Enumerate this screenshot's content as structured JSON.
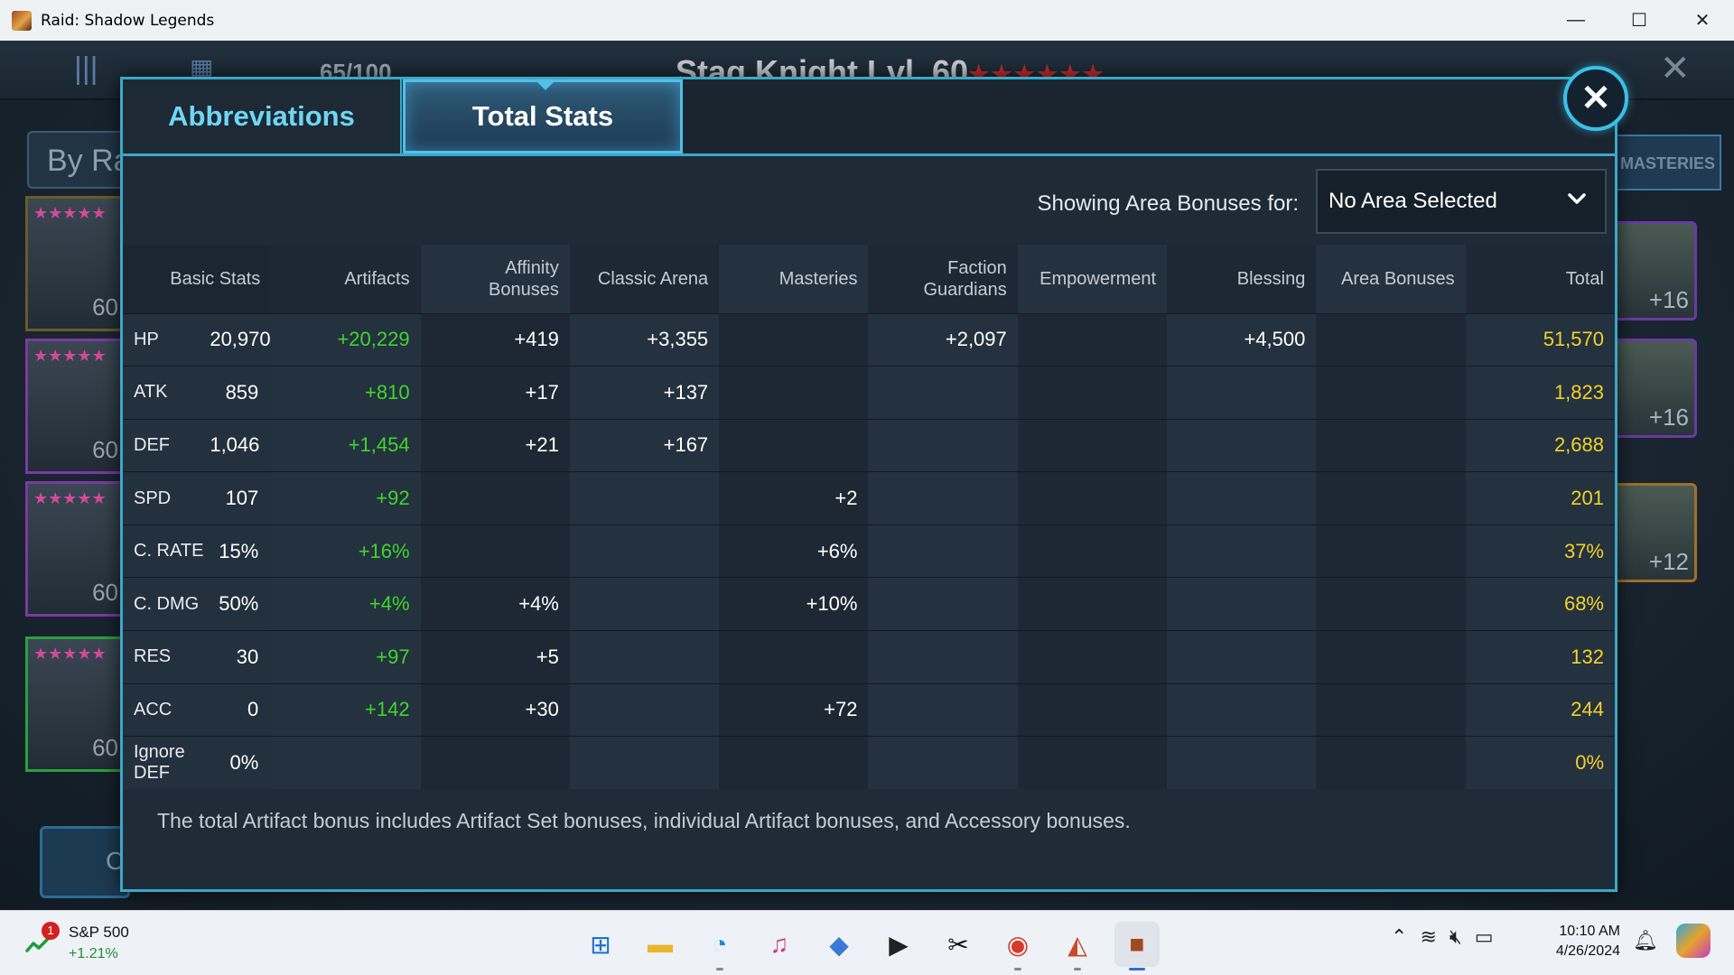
{
  "window": {
    "title": "Raid: Shadow Legends",
    "minimize": "—",
    "maximize": "☐",
    "close": "✕"
  },
  "game_bg": {
    "hero_title": "Stag Knight Lvl. 60",
    "stars": "★★★★★★",
    "champion_count": "65/100",
    "sort_label": "By Ra",
    "masteries_label": "MASTERIES",
    "card_levels": [
      "60",
      "60",
      "60",
      "60"
    ],
    "gear_levels": [
      "+16",
      "+16",
      "+12"
    ],
    "bottom_button_letter": "C"
  },
  "dialog": {
    "tabs": [
      "Abbreviations",
      "Total Stats"
    ],
    "active_tab": "Total Stats",
    "close_symbol": "✕",
    "area_label": "Showing Area Bonuses for:",
    "area_value": "No Area Selected",
    "chevron": "⌄",
    "columns": [
      "Basic Stats",
      "Artifacts",
      "Affinity Bonuses",
      "Classic Arena",
      "Masteries",
      "Faction Guardians",
      "Empowerment",
      "Blessing",
      "Area Bonuses",
      "Total"
    ],
    "rows": [
      {
        "stat": "HP",
        "basic": "20,970",
        "artifacts": "+20,229",
        "affinity": "+419",
        "arena": "+3,355",
        "masteries": "",
        "faction": "+2,097",
        "empowerment": "",
        "blessing": "+4,500",
        "area": "",
        "total": "51,570"
      },
      {
        "stat": "ATK",
        "basic": "859",
        "artifacts": "+810",
        "affinity": "+17",
        "arena": "+137",
        "masteries": "",
        "faction": "",
        "empowerment": "",
        "blessing": "",
        "area": "",
        "total": "1,823"
      },
      {
        "stat": "DEF",
        "basic": "1,046",
        "artifacts": "+1,454",
        "affinity": "+21",
        "arena": "+167",
        "masteries": "",
        "faction": "",
        "empowerment": "",
        "blessing": "",
        "area": "",
        "total": "2,688"
      },
      {
        "stat": "SPD",
        "basic": "107",
        "artifacts": "+92",
        "affinity": "",
        "arena": "",
        "masteries": "+2",
        "faction": "",
        "empowerment": "",
        "blessing": "",
        "area": "",
        "total": "201"
      },
      {
        "stat": "C. RATE",
        "basic": "15%",
        "artifacts": "+16%",
        "affinity": "",
        "arena": "",
        "masteries": "+6%",
        "faction": "",
        "empowerment": "",
        "blessing": "",
        "area": "",
        "total": "37%"
      },
      {
        "stat": "C. DMG",
        "basic": "50%",
        "artifacts": "+4%",
        "affinity": "+4%",
        "arena": "",
        "masteries": "+10%",
        "faction": "",
        "empowerment": "",
        "blessing": "",
        "area": "",
        "total": "68%"
      },
      {
        "stat": "RES",
        "basic": "30",
        "artifacts": "+97",
        "affinity": "+5",
        "arena": "",
        "masteries": "",
        "faction": "",
        "empowerment": "",
        "blessing": "",
        "area": "",
        "total": "132"
      },
      {
        "stat": "ACC",
        "basic": "0",
        "artifacts": "+142",
        "affinity": "+30",
        "arena": "",
        "masteries": "+72",
        "faction": "",
        "empowerment": "",
        "blessing": "",
        "area": "",
        "total": "244"
      },
      {
        "stat": "Ignore DEF",
        "basic": "0%",
        "artifacts": "",
        "affinity": "",
        "arena": "",
        "masteries": "",
        "faction": "",
        "empowerment": "",
        "blessing": "",
        "area": "",
        "total": "0%"
      }
    ],
    "footnote": "The total Artifact bonus includes Artifact Set bonuses, individual Artifact bonuses, and Accessory bonuses."
  },
  "colors": {
    "accent": "#3aa8c8",
    "artifact_green": "#3fd62e",
    "total_gold": "#f2d22a"
  },
  "taskbar": {
    "stock_name": "S&P 500",
    "stock_change": "+1.21%",
    "stock_badge": "1",
    "apps": [
      {
        "name": "windows-start-icon",
        "glyph": "⊞",
        "color": "#1f6fd6"
      },
      {
        "name": "file-explorer-icon",
        "glyph": "▬",
        "color": "#e8b42a"
      },
      {
        "name": "edge-browser-icon",
        "glyph": "◔",
        "color": "#1f8ad6"
      },
      {
        "name": "itunes-icon",
        "glyph": "♫",
        "color": "#d23a8a"
      },
      {
        "name": "game-launcher-icon",
        "glyph": "◆",
        "color": "#3a7ad6"
      },
      {
        "name": "media-player-icon",
        "glyph": "▶",
        "color": "#222222"
      },
      {
        "name": "capcut-icon",
        "glyph": "✂",
        "color": "#111111"
      },
      {
        "name": "chrome-icon",
        "glyph": "◉",
        "color": "#d63a2a"
      },
      {
        "name": "plarium-play-icon",
        "glyph": "◭",
        "color": "#c84a2a"
      },
      {
        "name": "raid-app-icon",
        "glyph": "■",
        "color": "#a24a1e"
      }
    ],
    "tray": {
      "chevron": "⌃",
      "wifi": "≋",
      "volume": "🔇︎",
      "battery": "▭"
    },
    "time": "10:10 AM",
    "date": "4/26/2024",
    "bell": "🔔︎"
  }
}
